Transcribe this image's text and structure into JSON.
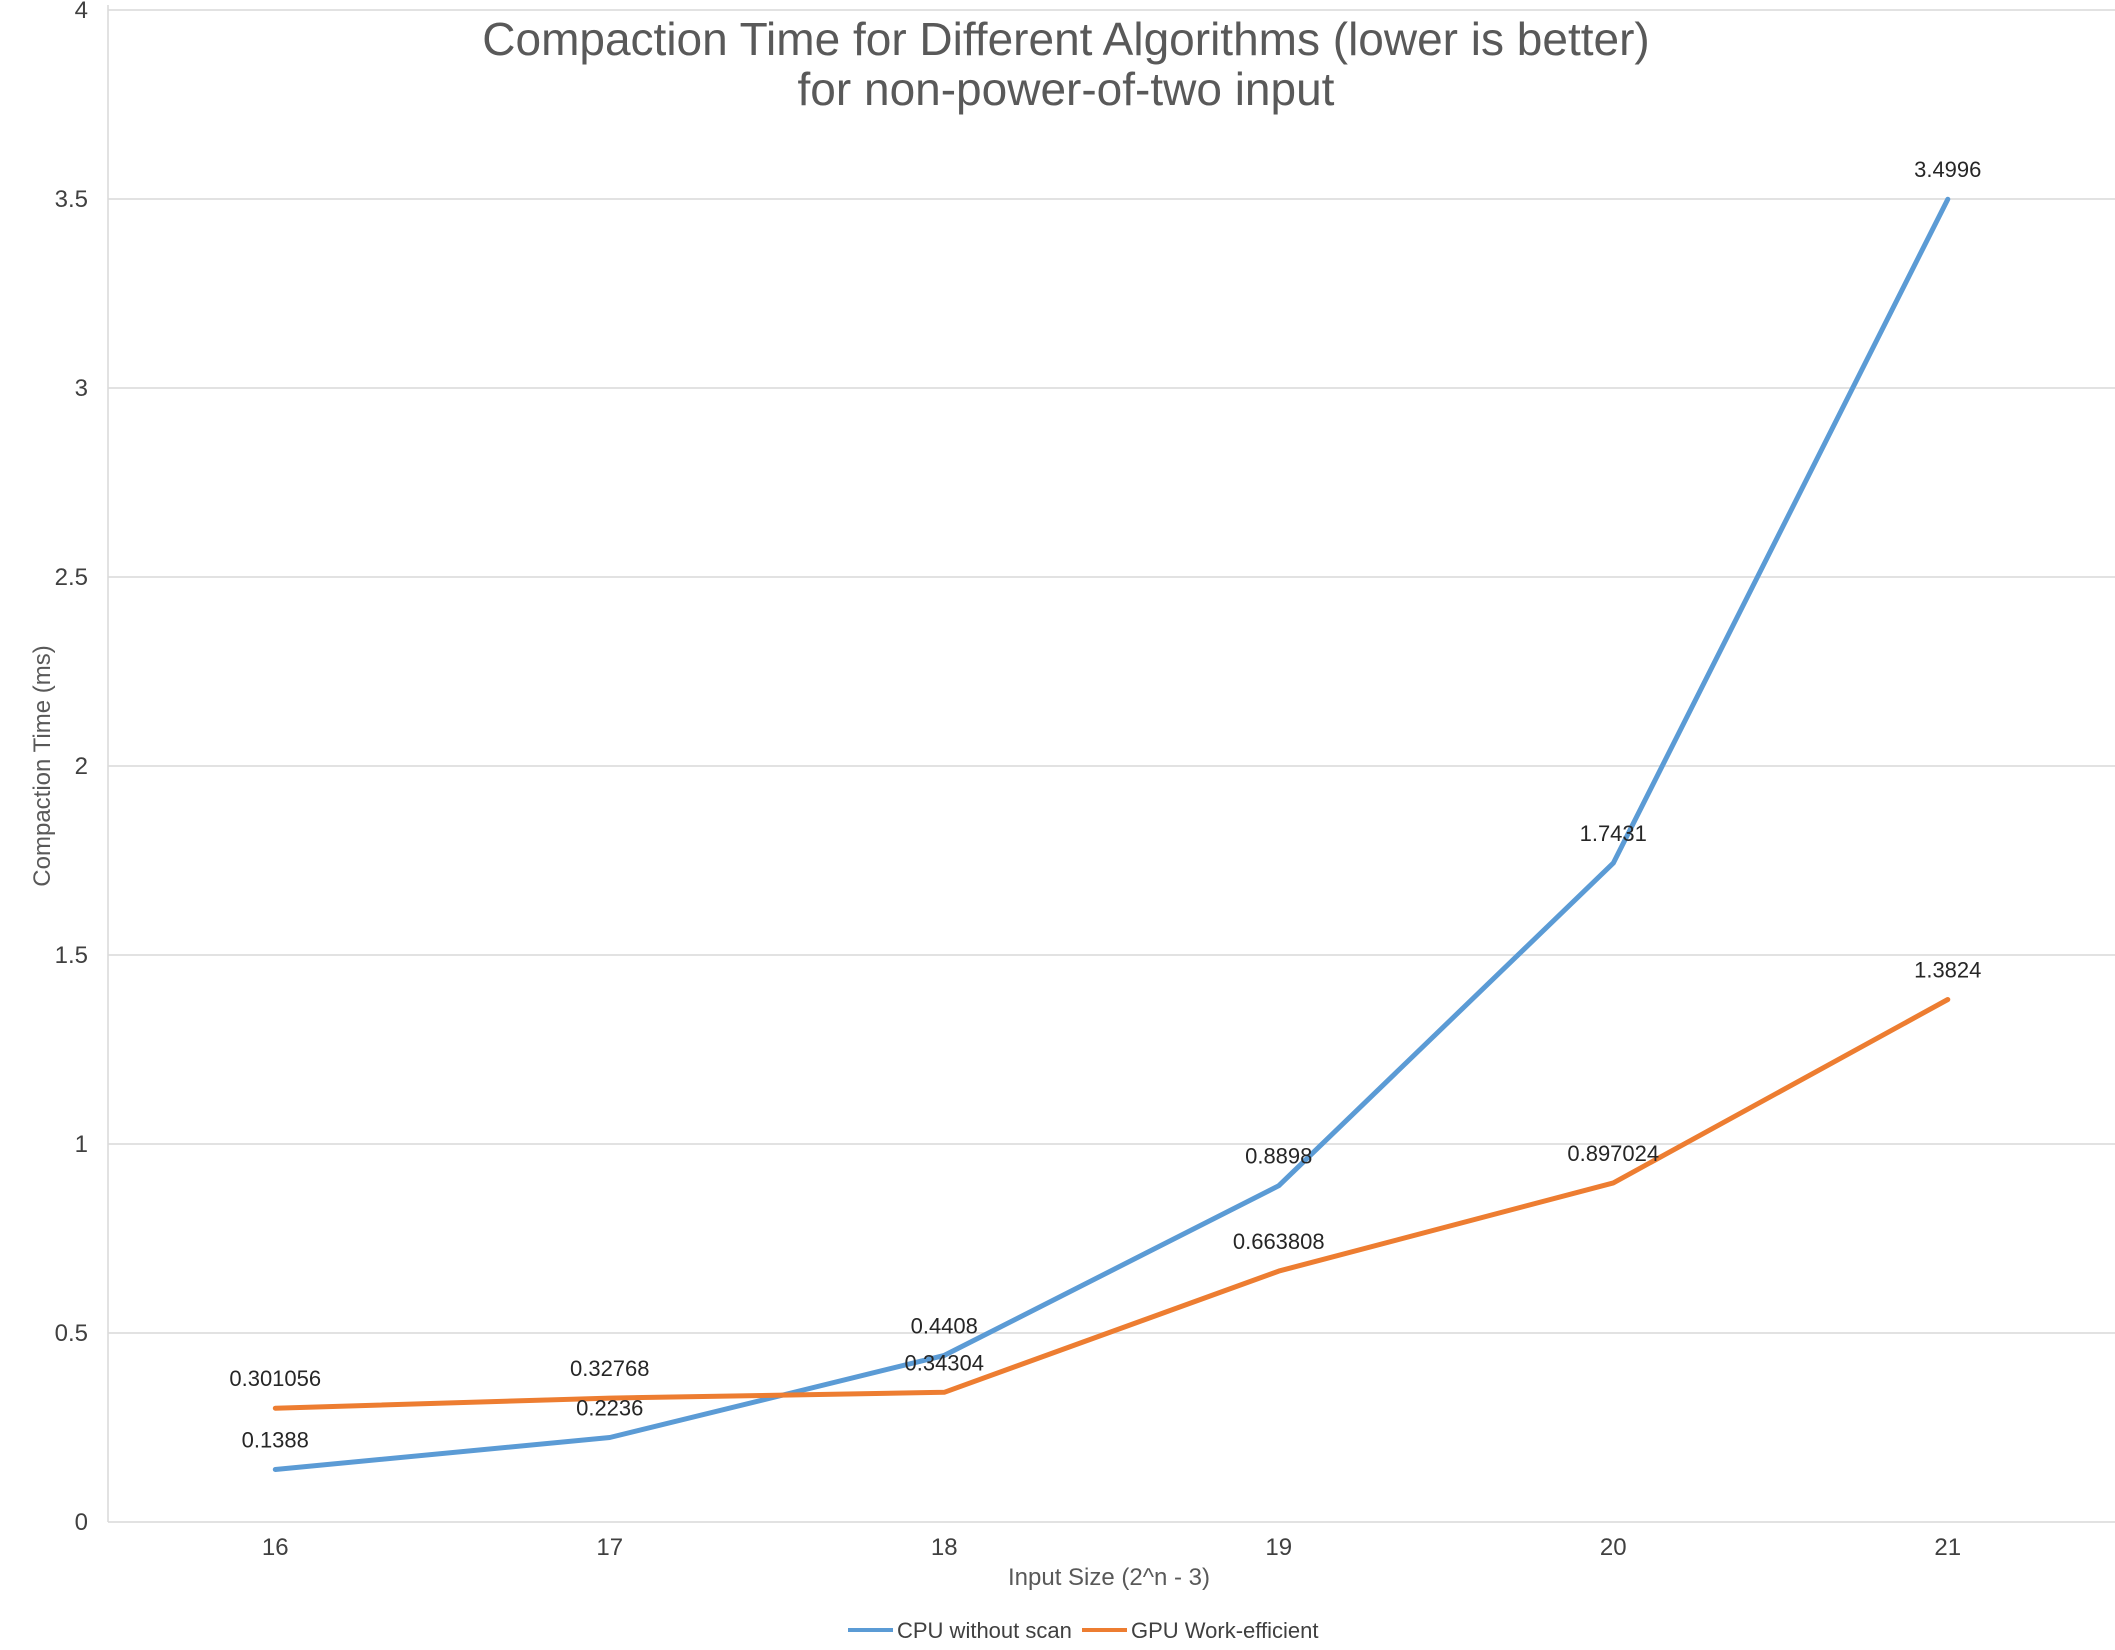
{
  "chart_data": {
    "type": "line",
    "title_lines": [
      "Compaction Time for Different Algorithms (lower is better)",
      "for non-power-of-two input"
    ],
    "xlabel": "Input Size (2^n - 3)",
    "ylabel": "Compaction Time (ms)",
    "x": [
      16,
      17,
      18,
      19,
      20,
      21
    ],
    "x_tick_labels": [
      "16",
      "17",
      "18",
      "19",
      "20",
      "21"
    ],
    "ylim": [
      0,
      4
    ],
    "y_ticks": [
      0,
      0.5,
      1,
      1.5,
      2,
      2.5,
      3,
      3.5,
      4
    ],
    "y_tick_labels": [
      "0",
      "0.5",
      "1",
      "1.5",
      "2",
      "2.5",
      "3",
      "3.5",
      "4"
    ],
    "grid": true,
    "legend_position": "bottom",
    "series": [
      {
        "name": "CPU without scan",
        "color": "#5b9bd5",
        "values": [
          0.1388,
          0.2236,
          0.4408,
          0.8898,
          1.7431,
          3.4996
        ],
        "labels": [
          "0.1388",
          "0.2236",
          "0.4408",
          "0.8898",
          "1.7431",
          "3.4996"
        ]
      },
      {
        "name": "GPU Work-efficient",
        "color": "#ed7d31",
        "values": [
          0.301056,
          0.32768,
          0.34304,
          0.663808,
          0.897024,
          1.3824
        ],
        "labels": [
          "0.301056",
          "0.32768",
          "0.34304",
          "0.663808",
          "0.897024",
          "1.3824"
        ]
      }
    ]
  }
}
